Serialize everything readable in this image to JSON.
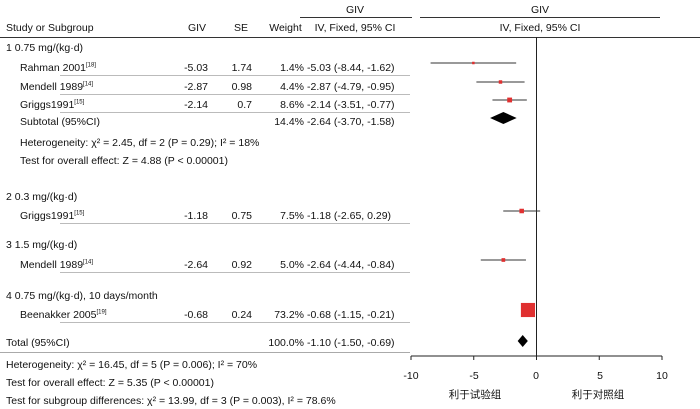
{
  "header": {
    "study_col": "Study or Subgroup",
    "giv_col": "GIV",
    "se_col": "SE",
    "weight_col": "Weight",
    "effect_group": "GIV",
    "effect_col": "IV, Fixed, 95% CI",
    "plot_group": "GIV",
    "plot_col": "IV, Fixed, 95% CI"
  },
  "subgroups": [
    {
      "title": "1  0.75 mg/(kg·d)",
      "studies": [
        {
          "name": "Rahman 2001",
          "ref": "[18]",
          "giv": "-5.03",
          "se": "1.74",
          "weight": "1.4%",
          "ci": "-5.03 (-8.44, -1.62)"
        },
        {
          "name": "Mendell 1989",
          "ref": "[14]",
          "giv": "-2.87",
          "se": "0.98",
          "weight": "4.4%",
          "ci": "-2.87 (-4.79, -0.95)"
        },
        {
          "name": "Griggs1991",
          "ref": "[15]",
          "giv": "-2.14",
          "se": "0.7",
          "weight": "8.6%",
          "ci": "-2.14 (-3.51, -0.77)"
        }
      ],
      "subtotal": {
        "label": "Subtotal (95%CI)",
        "weight": "14.4%",
        "ci": "-2.64 (-3.70, -1.58)"
      },
      "heterogeneity": "Heterogeneity: χ² = 2.45, df = 2 (P = 0.29); I² = 18%",
      "overall": "Test for overall effect: Z = 4.88 (P < 0.00001)"
    },
    {
      "title": "2  0.3 mg/(kg·d)",
      "studies": [
        {
          "name": "Griggs1991",
          "ref": "[15]",
          "giv": "-1.18",
          "se": "0.75",
          "weight": "7.5%",
          "ci": "-1.18 (-2.65, 0.29)"
        }
      ]
    },
    {
      "title": "3  1.5 mg/(kg·d)",
      "studies": [
        {
          "name": "Mendell 1989",
          "ref": "[14]",
          "giv": "-2.64",
          "se": "0.92",
          "weight": "5.0%",
          "ci": "-2.64 (-4.44, -0.84)"
        }
      ]
    },
    {
      "title": "4  0.75 mg/(kg·d), 10 days/month",
      "studies": [
        {
          "name": "Beenakker 2005",
          "ref": "[19]",
          "giv": "-0.68",
          "se": "0.24",
          "weight": "73.2%",
          "ci": "-0.68 (-1.15, -0.21)"
        }
      ]
    }
  ],
  "total": {
    "label": "Total (95%CI)",
    "weight": "100.0%",
    "ci": "-1.10 (-1.50, -0.69)"
  },
  "footer": {
    "heterogeneity": "Heterogeneity: χ² = 16.45, df = 5 (P = 0.006); I² = 70%",
    "overall": "Test for overall effect: Z = 5.35 (P < 0.00001)",
    "subgroup_diff": "Test for subgroup differences: χ² = 13.99, df = 3 (P = 0.003), I² = 78.6%"
  },
  "axis": {
    "ticks": [
      "-10",
      "-5",
      "0",
      "5",
      "10"
    ],
    "favours_left": "利于试验组",
    "favours_right": "利于对照组"
  },
  "colors": {
    "square": "#e03030",
    "diamond": "#000000",
    "ci_line": "#333333"
  },
  "chart_data": {
    "type": "forest",
    "xlim": [
      -10,
      10
    ],
    "ticks": [
      -10,
      -5,
      0,
      5,
      10
    ],
    "points": [
      {
        "study": "Rahman 2001",
        "subgroup": 1,
        "estimate": -5.03,
        "lower": -8.44,
        "upper": -1.62,
        "weight": 1.4
      },
      {
        "study": "Mendell 1989",
        "subgroup": 1,
        "estimate": -2.87,
        "lower": -4.79,
        "upper": -0.95,
        "weight": 4.4
      },
      {
        "study": "Griggs1991",
        "subgroup": 1,
        "estimate": -2.14,
        "lower": -3.51,
        "upper": -0.77,
        "weight": 8.6
      },
      {
        "study": "Griggs1991",
        "subgroup": 2,
        "estimate": -1.18,
        "lower": -2.65,
        "upper": 0.29,
        "weight": 7.5
      },
      {
        "study": "Mendell 1989",
        "subgroup": 3,
        "estimate": -2.64,
        "lower": -4.44,
        "upper": -0.84,
        "weight": 5.0
      },
      {
        "study": "Beenakker 2005",
        "subgroup": 4,
        "estimate": -0.68,
        "lower": -1.15,
        "upper": -0.21,
        "weight": 73.2
      }
    ],
    "diamonds": [
      {
        "label": "Subtotal (95%CI)",
        "subgroup": 1,
        "estimate": -2.64,
        "lower": -3.7,
        "upper": -1.58
      },
      {
        "label": "Total (95%CI)",
        "estimate": -1.1,
        "lower": -1.5,
        "upper": -0.69
      }
    ]
  }
}
